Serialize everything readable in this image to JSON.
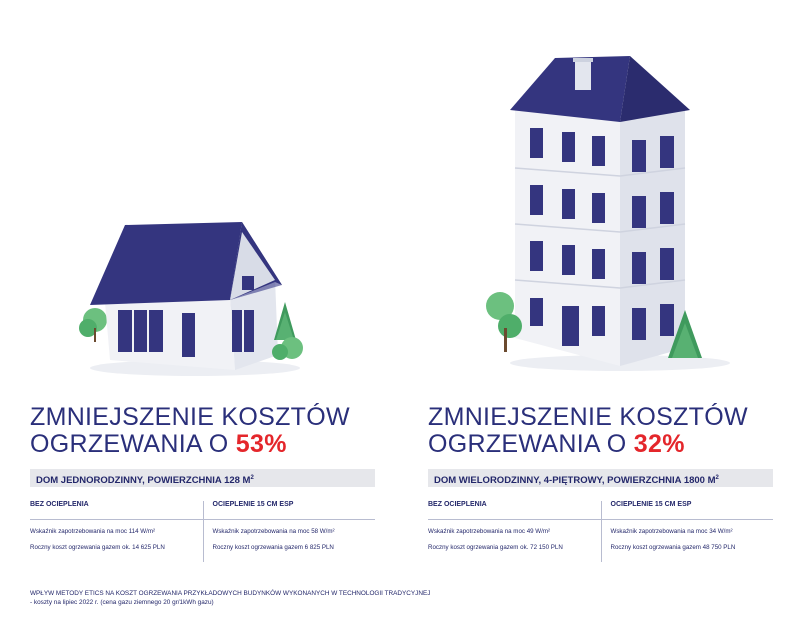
{
  "left": {
    "headline_line1": "ZMNIEJSZENIE KOSZTÓW",
    "headline_line2_prefix": "OGRZEWANIA O ",
    "percent": "53%",
    "type_text": "DOM JEDNORODZINNY, POWIERZCHNIA 128 M",
    "type_sup": "2",
    "col1_head": "BEZ OCIEPLENIA",
    "col2_head": "OCIEPLENIE 15 CM ESP",
    "col1_line1": "Wskaźnik zapotrzebowania na moc 114 W/m²",
    "col1_line2": "Roczny koszt ogrzewania gazem ok. 14 625 PLN",
    "col2_line1": "Wskaźnik zapotrzebowania na moc 58 W/m²",
    "col2_line2": "Roczny koszt ogrzewania gazem 6 825 PLN"
  },
  "right": {
    "headline_line1": "ZMNIEJSZENIE KOSZTÓW",
    "headline_line2_prefix": "OGRZEWANIA O ",
    "percent": "32%",
    "type_text": "DOM WIELORODZINNY, 4-PIĘTROWY, POWIERZCHNIA 1800 M",
    "type_sup": "2",
    "col1_head": "BEZ OCIEPLENIA",
    "col2_head": "OCIEPLENIE 15 CM ESP",
    "col1_line1": "Wskaźnik zapotrzebowania na moc 49 W/m²",
    "col1_line2": "Roczny koszt ogrzewania gazem ok. 72 150 PLN",
    "col2_line1": "Wskaźnik zapotrzebowania na moc 34 W/m²",
    "col2_line2": "Roczny koszt ogrzewania gazem 48 750 PLN"
  },
  "footer": {
    "line1": "WPŁYW METODY ETICS NA KOSZT OGRZEWANIA PRZYKŁADOWYCH BUDYNKÓW WYKONANYCH W TECHNOLOGII TRADYCYJNEJ",
    "line2": "- koszty na lipiec 2022 r. (cena gazu ziemnego 20 gr/1kWh gazu)"
  },
  "colors": {
    "roof": "#33347f",
    "wall": "#eef0f4",
    "wall_shade": "#cdd2df",
    "accent_red": "#e4262b",
    "navy": "#23276a",
    "tree": "#4fae6a"
  }
}
